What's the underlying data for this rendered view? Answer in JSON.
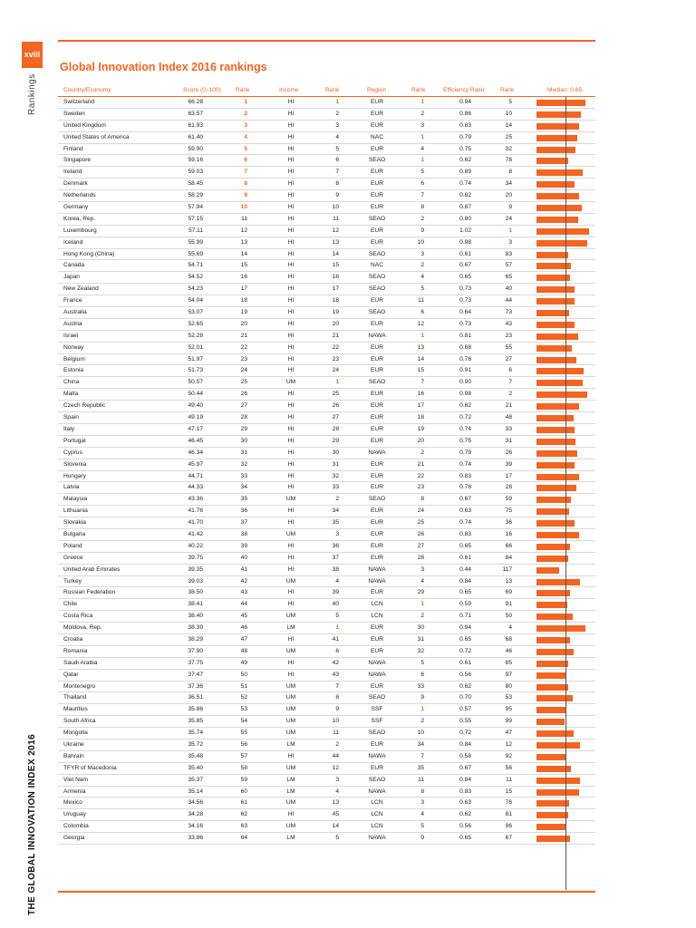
{
  "page": {
    "number": "xviii",
    "side_section": "Rankings",
    "side_title": "THE GLOBAL INNOVATION INDEX 2016",
    "title": "Global Innovation Index 2016 rankings"
  },
  "colors": {
    "accent": "#f26522"
  },
  "header": {
    "country": "Country/Economy",
    "score": "Score (0–100)",
    "rank1": "Rank",
    "income": "Income",
    "rank2": "Rank",
    "region": "Region",
    "rank3": "Rank",
    "efficiency": "Efficiency Ratio",
    "rank4": "Rank",
    "median": "Median: 0.65"
  },
  "bar_scale_max": 1.02,
  "median_value": 0.65,
  "rows": [
    [
      "Switzerland",
      "66.28",
      "1",
      "HI",
      "1",
      "EUR",
      "1",
      "0.94",
      "5"
    ],
    [
      "Sweden",
      "63.57",
      "2",
      "HI",
      "2",
      "EUR",
      "2",
      "0.86",
      "10"
    ],
    [
      "United Kingdom",
      "61.93",
      "3",
      "HI",
      "3",
      "EUR",
      "3",
      "0.83",
      "14"
    ],
    [
      "United States of America",
      "61.40",
      "4",
      "HI",
      "4",
      "NAC",
      "1",
      "0.79",
      "25"
    ],
    [
      "Finland",
      "59.90",
      "5",
      "HI",
      "5",
      "EUR",
      "4",
      "0.75",
      "32"
    ],
    [
      "Singapore",
      "59.16",
      "6",
      "HI",
      "6",
      "SEAO",
      "1",
      "0.62",
      "78"
    ],
    [
      "Ireland",
      "59.03",
      "7",
      "HI",
      "7",
      "EUR",
      "5",
      "0.89",
      "8"
    ],
    [
      "Denmark",
      "58.45",
      "8",
      "HI",
      "8",
      "EUR",
      "6",
      "0.74",
      "34"
    ],
    [
      "Netherlands",
      "58.29",
      "9",
      "HI",
      "9",
      "EUR",
      "7",
      "0.82",
      "20"
    ],
    [
      "Germany",
      "57.94",
      "10",
      "HI",
      "10",
      "EUR",
      "8",
      "0.87",
      "9"
    ],
    [
      "Korea, Rep.",
      "57.15",
      "11",
      "HI",
      "11",
      "SEAO",
      "2",
      "0.80",
      "24"
    ],
    [
      "Luxembourg",
      "57.11",
      "12",
      "HI",
      "12",
      "EUR",
      "9",
      "1.02",
      "1"
    ],
    [
      "Iceland",
      "55.99",
      "13",
      "HI",
      "13",
      "EUR",
      "10",
      "0.98",
      "3"
    ],
    [
      "Hong Kong (China)",
      "55.69",
      "14",
      "HI",
      "14",
      "SEAO",
      "3",
      "0.61",
      "83"
    ],
    [
      "Canada",
      "54.71",
      "15",
      "HI",
      "15",
      "NAC",
      "2",
      "0.67",
      "57"
    ],
    [
      "Japan",
      "54.52",
      "16",
      "HI",
      "16",
      "SEAO",
      "4",
      "0.65",
      "65"
    ],
    [
      "New Zealand",
      "54.23",
      "17",
      "HI",
      "17",
      "SEAO",
      "5",
      "0.73",
      "40"
    ],
    [
      "France",
      "54.04",
      "18",
      "HI",
      "18",
      "EUR",
      "11",
      "0.73",
      "44"
    ],
    [
      "Australia",
      "53.07",
      "19",
      "HI",
      "19",
      "SEAO",
      "6",
      "0.64",
      "73"
    ],
    [
      "Austria",
      "52.65",
      "20",
      "HI",
      "20",
      "EUR",
      "12",
      "0.73",
      "43"
    ],
    [
      "Israel",
      "52.28",
      "21",
      "HI",
      "21",
      "NAWA",
      "1",
      "0.81",
      "23"
    ],
    [
      "Norway",
      "52.01",
      "22",
      "HI",
      "22",
      "EUR",
      "13",
      "0.68",
      "55"
    ],
    [
      "Belgium",
      "51.97",
      "23",
      "HI",
      "23",
      "EUR",
      "14",
      "0.78",
      "27"
    ],
    [
      "Estonia",
      "51.73",
      "24",
      "HI",
      "24",
      "EUR",
      "15",
      "0.91",
      "6"
    ],
    [
      "China",
      "50.57",
      "25",
      "UM",
      "1",
      "SEAO",
      "7",
      "0.90",
      "7"
    ],
    [
      "Malta",
      "50.44",
      "26",
      "HI",
      "25",
      "EUR",
      "16",
      "0.98",
      "2"
    ],
    [
      "Czech Republic",
      "49.40",
      "27",
      "HI",
      "26",
      "EUR",
      "17",
      "0.82",
      "21"
    ],
    [
      "Spain",
      "49.19",
      "28",
      "HI",
      "27",
      "EUR",
      "18",
      "0.72",
      "48"
    ],
    [
      "Italy",
      "47.17",
      "29",
      "HI",
      "28",
      "EUR",
      "19",
      "0.74",
      "33"
    ],
    [
      "Portugal",
      "46.45",
      "30",
      "HI",
      "29",
      "EUR",
      "20",
      "0.75",
      "31"
    ],
    [
      "Cyprus",
      "46.34",
      "31",
      "HI",
      "30",
      "NAWA",
      "2",
      "0.79",
      "26"
    ],
    [
      "Slovenia",
      "45.97",
      "32",
      "HI",
      "31",
      "EUR",
      "21",
      "0.74",
      "39"
    ],
    [
      "Hungary",
      "44.71",
      "33",
      "HI",
      "32",
      "EUR",
      "22",
      "0.83",
      "17"
    ],
    [
      "Latvia",
      "44.33",
      "34",
      "HI",
      "33",
      "EUR",
      "23",
      "0.78",
      "28"
    ],
    [
      "Malaysia",
      "43.36",
      "35",
      "UM",
      "2",
      "SEAO",
      "8",
      "0.67",
      "59"
    ],
    [
      "Lithuania",
      "41.76",
      "36",
      "HI",
      "34",
      "EUR",
      "24",
      "0.63",
      "75"
    ],
    [
      "Slovakia",
      "41.70",
      "37",
      "HI",
      "35",
      "EUR",
      "25",
      "0.74",
      "36"
    ],
    [
      "Bulgaria",
      "41.42",
      "38",
      "UM",
      "3",
      "EUR",
      "26",
      "0.83",
      "16"
    ],
    [
      "Poland",
      "40.22",
      "39",
      "HI",
      "36",
      "EUR",
      "27",
      "0.65",
      "66"
    ],
    [
      "Greece",
      "39.75",
      "40",
      "HI",
      "37",
      "EUR",
      "28",
      "0.61",
      "84"
    ],
    [
      "United Arab Emirates",
      "39.35",
      "41",
      "HI",
      "38",
      "NAWA",
      "3",
      "0.44",
      "117"
    ],
    [
      "Turkey",
      "39.03",
      "42",
      "UM",
      "4",
      "NAWA",
      "4",
      "0.84",
      "13"
    ],
    [
      "Russian Federation",
      "38.50",
      "43",
      "HI",
      "39",
      "EUR",
      "29",
      "0.65",
      "69"
    ],
    [
      "Chile",
      "38.41",
      "44",
      "HI",
      "40",
      "LCN",
      "1",
      "0.59",
      "91"
    ],
    [
      "Costa Rica",
      "38.40",
      "45",
      "UM",
      "5",
      "LCN",
      "2",
      "0.71",
      "50"
    ],
    [
      "Moldova, Rep.",
      "38.39",
      "46",
      "LM",
      "1",
      "EUR",
      "30",
      "0.94",
      "4"
    ],
    [
      "Croatia",
      "38.29",
      "47",
      "HI",
      "41",
      "EUR",
      "31",
      "0.65",
      "68"
    ],
    [
      "Romania",
      "37.90",
      "48",
      "UM",
      "6",
      "EUR",
      "32",
      "0.72",
      "46"
    ],
    [
      "Saudi Arabia",
      "37.75",
      "49",
      "HI",
      "42",
      "NAWA",
      "5",
      "0.61",
      "85"
    ],
    [
      "Qatar",
      "37.47",
      "50",
      "HI",
      "43",
      "NAWA",
      "6",
      "0.56",
      "97"
    ],
    [
      "Montenegro",
      "37.36",
      "51",
      "UM",
      "7",
      "EUR",
      "33",
      "0.62",
      "80"
    ],
    [
      "Thailand",
      "36.51",
      "52",
      "UM",
      "8",
      "SEAO",
      "9",
      "0.70",
      "53"
    ],
    [
      "Mauritius",
      "35.86",
      "53",
      "UM",
      "9",
      "SSF",
      "1",
      "0.57",
      "95"
    ],
    [
      "South Africa",
      "35.85",
      "54",
      "UM",
      "10",
      "SSF",
      "2",
      "0.55",
      "99"
    ],
    [
      "Mongolia",
      "35.74",
      "55",
      "UM",
      "11",
      "SEAO",
      "10",
      "0.72",
      "47"
    ],
    [
      "Ukraine",
      "35.72",
      "56",
      "LM",
      "2",
      "EUR",
      "34",
      "0.84",
      "12"
    ],
    [
      "Bahrain",
      "35.48",
      "57",
      "HI",
      "44",
      "NAWA",
      "7",
      "0.58",
      "92"
    ],
    [
      "TFYR of Macedonia",
      "35.40",
      "58",
      "UM",
      "12",
      "EUR",
      "35",
      "0.67",
      "56"
    ],
    [
      "Viet Nam",
      "35.37",
      "59",
      "LM",
      "3",
      "SEAO",
      "11",
      "0.84",
      "11"
    ],
    [
      "Armenia",
      "35.14",
      "60",
      "LM",
      "4",
      "NAWA",
      "8",
      "0.83",
      "15"
    ],
    [
      "Mexico",
      "34.56",
      "61",
      "UM",
      "13",
      "LCN",
      "3",
      "0.63",
      "76"
    ],
    [
      "Uruguay",
      "34.28",
      "62",
      "HI",
      "45",
      "LCN",
      "4",
      "0.62",
      "81"
    ],
    [
      "Colombia",
      "34.16",
      "63",
      "UM",
      "14",
      "LCN",
      "5",
      "0.56",
      "96"
    ],
    [
      "Georgia",
      "33.86",
      "64",
      "LM",
      "5",
      "NAWA",
      "9",
      "0.65",
      "67"
    ]
  ]
}
